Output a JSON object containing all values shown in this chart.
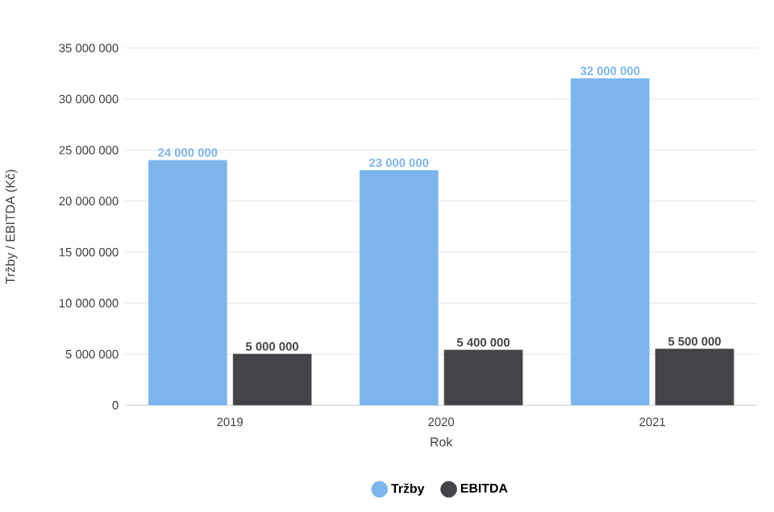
{
  "chart_data": {
    "type": "bar",
    "xlabel": "Rok",
    "ylabel": "Tržby / EBITDA (Kč)",
    "categories": [
      "2019",
      "2020",
      "2021"
    ],
    "series": [
      {
        "name": "Tržby",
        "color": "#7cb5ec",
        "values": [
          24000000,
          23000000,
          32000000
        ],
        "value_labels": [
          "24 000 000",
          "23 000 000",
          "32 000 000"
        ]
      },
      {
        "name": "EBITDA",
        "color": "#434348",
        "values": [
          5000000,
          5400000,
          5500000
        ],
        "value_labels": [
          "5 000 000",
          "5 400 000",
          "5 500 000"
        ]
      }
    ],
    "ylim": [
      0,
      35000000
    ],
    "yticks": [
      {
        "value": 0,
        "label": "0"
      },
      {
        "value": 5000000,
        "label": "5 000 000"
      },
      {
        "value": 10000000,
        "label": "10 000 000"
      },
      {
        "value": 15000000,
        "label": "15 000 000"
      },
      {
        "value": 20000000,
        "label": "20 000 000"
      },
      {
        "value": 25000000,
        "label": "25 000 000"
      },
      {
        "value": 30000000,
        "label": "30 000 000"
      },
      {
        "value": 35000000,
        "label": "35 000 000"
      }
    ],
    "grid": "y",
    "legend": "bottom"
  }
}
